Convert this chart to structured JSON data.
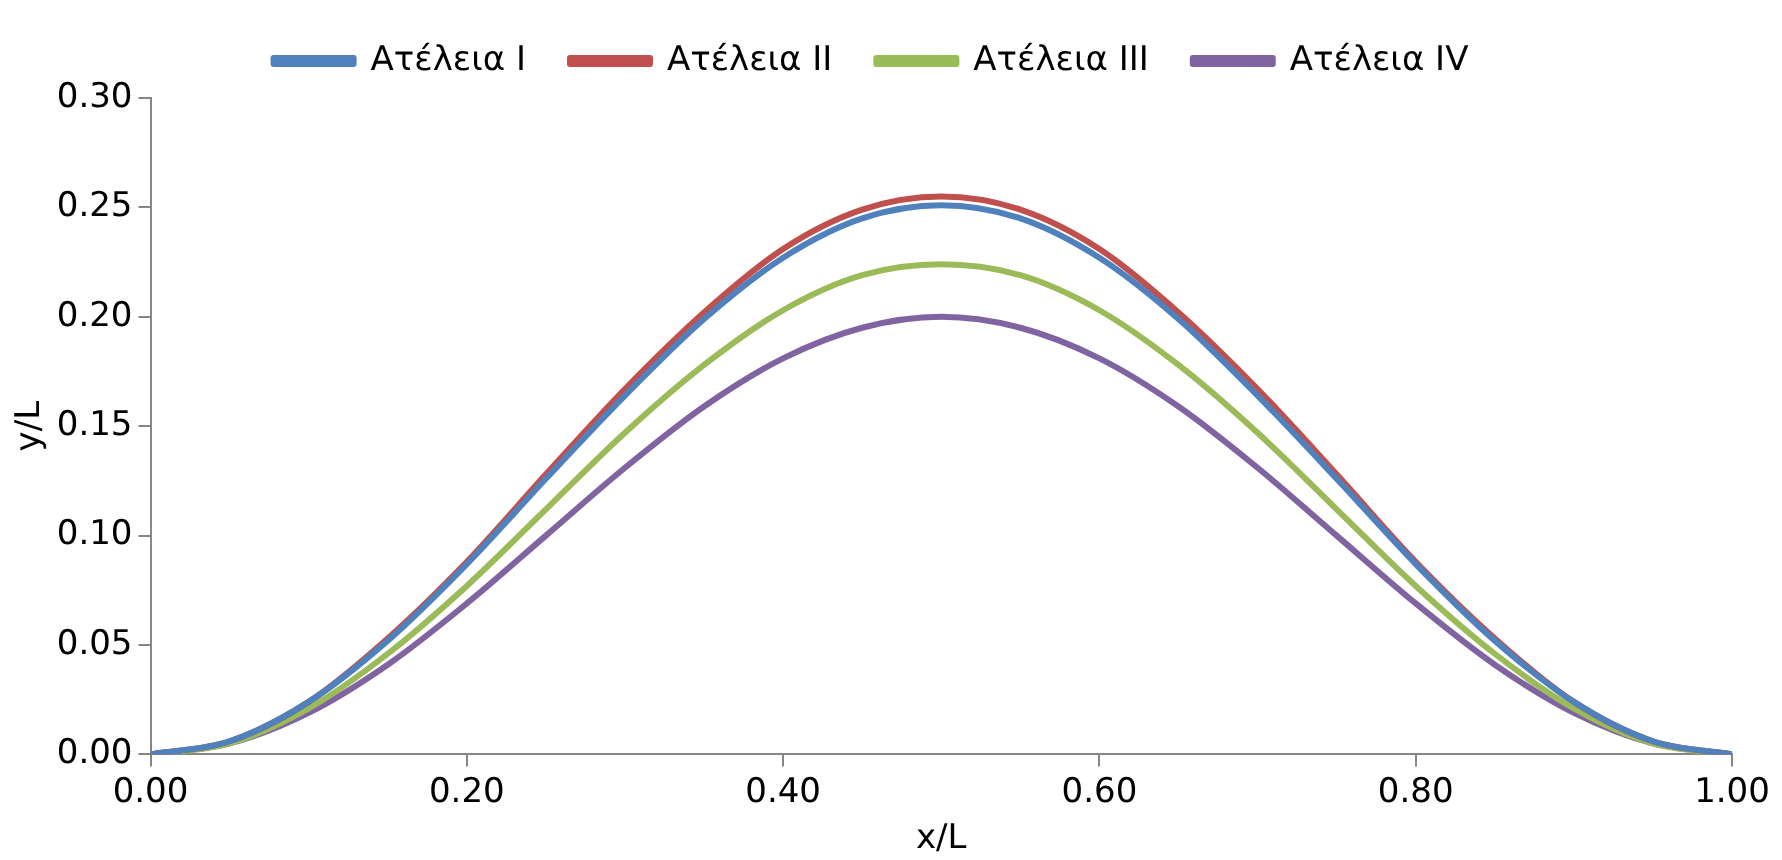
{
  "chart_data": {
    "type": "line",
    "xlabel": "x/L",
    "ylabel": "y/L",
    "x": [
      0,
      0.05,
      0.1,
      0.15,
      0.2,
      0.25,
      0.3,
      0.35,
      0.4,
      0.45,
      0.5,
      0.55,
      0.6,
      0.65,
      0.7,
      0.75,
      0.8,
      0.85,
      0.9,
      0.95,
      1
    ],
    "series": [
      {
        "name": "Ατέλεια I",
        "color": "#4f81bd",
        "values": [
          0,
          0.006,
          0.024,
          0.052,
          0.087,
          0.126,
          0.164,
          0.199,
          0.227,
          0.245,
          0.251,
          0.245,
          0.227,
          0.199,
          0.164,
          0.126,
          0.087,
          0.052,
          0.024,
          0.006,
          0
        ]
      },
      {
        "name": "Ατέλεια II",
        "color": "#c0504d",
        "values": [
          0,
          0.006,
          0.024,
          0.053,
          0.088,
          0.128,
          0.167,
          0.202,
          0.231,
          0.249,
          0.255,
          0.249,
          0.231,
          0.202,
          0.167,
          0.128,
          0.088,
          0.053,
          0.024,
          0.006,
          0
        ]
      },
      {
        "name": "Ατέλεια III",
        "color": "#9bbb59",
        "values": [
          0,
          0.005,
          0.021,
          0.046,
          0.077,
          0.112,
          0.147,
          0.178,
          0.203,
          0.219,
          0.224,
          0.219,
          0.203,
          0.178,
          0.147,
          0.112,
          0.077,
          0.046,
          0.021,
          0.005,
          0
        ]
      },
      {
        "name": "Ατέλεια IV",
        "color": "#8064a2",
        "values": [
          0,
          0.005,
          0.019,
          0.041,
          0.069,
          0.1,
          0.131,
          0.159,
          0.181,
          0.195,
          0.2,
          0.195,
          0.181,
          0.159,
          0.131,
          0.1,
          0.069,
          0.041,
          0.019,
          0.005,
          0
        ]
      }
    ],
    "xlim": [
      0,
      1
    ],
    "xticks": [
      {
        "value": 0,
        "label": "0.00"
      },
      {
        "value": 0.2,
        "label": "0.20"
      },
      {
        "value": 0.4,
        "label": "0.40"
      },
      {
        "value": 0.6,
        "label": "0.60"
      },
      {
        "value": 0.8,
        "label": "0.80"
      },
      {
        "value": 1,
        "label": "1.00"
      }
    ],
    "ylim": [
      0,
      0.3
    ],
    "yticks": [
      {
        "value": 0,
        "label": "0.00"
      },
      {
        "value": 0.05,
        "label": "0.05"
      },
      {
        "value": 0.1,
        "label": "0.10"
      },
      {
        "value": 0.15,
        "label": "0.15"
      },
      {
        "value": 0.2,
        "label": "0.20"
      },
      {
        "value": 0.25,
        "label": "0.25"
      },
      {
        "value": 0.3,
        "label": "0.30"
      }
    ],
    "grid": false,
    "legend": "top",
    "marker": "none",
    "line_style": "solid"
  }
}
